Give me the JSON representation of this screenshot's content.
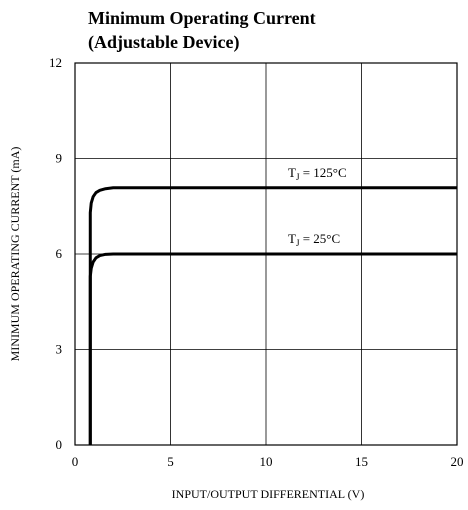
{
  "chart_data": {
    "type": "line",
    "title_lines": [
      "Minimum Operating Current",
      "(Adjustable Device)"
    ],
    "xlabel": "INPUT/OUTPUT DIFFERENTIAL (V)",
    "ylabel": "MINIMUM OPERATING CURRENT (mA)",
    "xlim": [
      0,
      20
    ],
    "ylim": [
      0,
      12
    ],
    "xticks": [
      0,
      5,
      10,
      15,
      20
    ],
    "yticks": [
      0,
      3,
      6,
      9,
      12
    ],
    "xtick_labels": [
      "0",
      "5",
      "10",
      "15",
      "20"
    ],
    "ytick_labels": [
      "0",
      "3",
      "6",
      "9",
      "12"
    ],
    "grid": true,
    "series": [
      {
        "label_main": "T",
        "label_sub": "J",
        "label_rest": " = 125°C",
        "x": [
          0.8,
          0.8,
          0.85,
          0.95,
          1.1,
          1.3,
          1.6,
          2.0,
          3.0,
          20
        ],
        "y": [
          0,
          7.3,
          7.6,
          7.8,
          7.93,
          8.0,
          8.05,
          8.08,
          8.08,
          8.08
        ]
      },
      {
        "label_main": "T",
        "label_sub": "J",
        "label_rest": " = 25°C",
        "x": [
          0.8,
          0.8,
          0.85,
          0.95,
          1.1,
          1.3,
          1.6,
          2.0,
          3.0,
          20
        ],
        "y": [
          0,
          5.3,
          5.55,
          5.75,
          5.88,
          5.95,
          5.99,
          6.0,
          6.0,
          6.0
        ]
      }
    ]
  }
}
